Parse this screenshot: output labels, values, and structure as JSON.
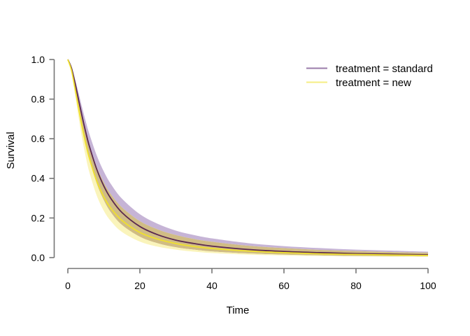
{
  "figure": {
    "background": "#ffffff",
    "kind": "base-R-style survival plot"
  },
  "chart_data": {
    "type": "line",
    "title": "",
    "xlabel": "Time",
    "ylabel": "Survival",
    "xlim": [
      0,
      100
    ],
    "ylim": [
      0.0,
      1.0
    ],
    "grid": false,
    "x_ticks": {
      "values": [
        0,
        20,
        40,
        60,
        80,
        100
      ],
      "labels": [
        "0",
        "20",
        "40",
        "60",
        "80",
        "100"
      ]
    },
    "y_ticks": {
      "values": [
        0.0,
        0.2,
        0.4,
        0.6,
        0.8,
        1.0
      ],
      "labels": [
        "0.0",
        "0.2",
        "0.4",
        "0.6",
        "0.8",
        "1.0"
      ]
    },
    "times": [
      0,
      1,
      2,
      3,
      4,
      5,
      6,
      8,
      10,
      12,
      15,
      20,
      25,
      30,
      35,
      40,
      50,
      60,
      70,
      80,
      90,
      100
    ],
    "series": [
      {
        "name": "treatment = standard",
        "values": [
          1,
          0.957,
          0.881,
          0.795,
          0.71,
          0.631,
          0.561,
          0.447,
          0.361,
          0.297,
          0.228,
          0.157,
          0.115,
          0.088,
          0.071,
          0.058,
          0.041,
          0.031,
          0.025,
          0.02,
          0.017,
          0.014
        ],
        "upper": [
          1,
          0.965,
          0.901,
          0.829,
          0.755,
          0.686,
          0.623,
          0.517,
          0.434,
          0.37,
          0.298,
          0.219,
          0.17,
          0.136,
          0.114,
          0.097,
          0.073,
          0.058,
          0.048,
          0.04,
          0.035,
          0.03
        ],
        "lower": [
          1,
          0.948,
          0.857,
          0.756,
          0.659,
          0.57,
          0.494,
          0.374,
          0.289,
          0.227,
          0.165,
          0.105,
          0.072,
          0.052,
          0.04,
          0.031,
          0.021,
          0.015,
          0.011,
          0.008,
          0.007,
          0.006
        ]
      },
      {
        "name": "treatment = new",
        "values": [
          1,
          0.946,
          0.853,
          0.752,
          0.657,
          0.572,
          0.5,
          0.387,
          0.306,
          0.248,
          0.188,
          0.127,
          0.093,
          0.071,
          0.056,
          0.046,
          0.033,
          0.025,
          0.019,
          0.016,
          0.013,
          0.011
        ],
        "upper": [
          1,
          0.956,
          0.878,
          0.792,
          0.709,
          0.633,
          0.567,
          0.459,
          0.379,
          0.319,
          0.254,
          0.184,
          0.142,
          0.114,
          0.094,
          0.08,
          0.06,
          0.048,
          0.039,
          0.033,
          0.028,
          0.025
        ],
        "lower": [
          1,
          0.935,
          0.824,
          0.706,
          0.599,
          0.506,
          0.429,
          0.314,
          0.236,
          0.183,
          0.13,
          0.081,
          0.055,
          0.04,
          0.03,
          0.023,
          0.015,
          0.011,
          0.008,
          0.006,
          0.005,
          0.004
        ]
      }
    ],
    "colors": {
      "standard_line": "#5A2850",
      "standard_band": "#C6B4D6",
      "new_line": "#F0E12D",
      "new_band": "#FAF4BB",
      "overlap_band": "#D0BC85",
      "axis": "#757575",
      "text": "#000000"
    },
    "legend": {
      "position": "top-right",
      "entries": [
        {
          "label": "treatment = standard",
          "color": "#9A7BAA"
        },
        {
          "label": "treatment = new",
          "color": "#F5EE82"
        }
      ]
    }
  }
}
